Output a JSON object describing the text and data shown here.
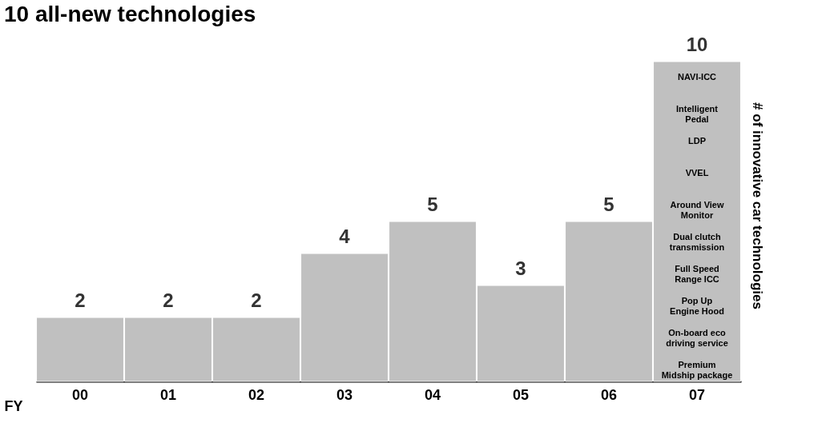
{
  "chart_data": {
    "type": "bar",
    "title": "10 all-new technologies",
    "xlabel": "FY",
    "ylabel": "# of innovative car technologies",
    "categories": [
      "00",
      "01",
      "02",
      "03",
      "04",
      "05",
      "06",
      "07"
    ],
    "values": [
      2,
      2,
      2,
      4,
      5,
      3,
      5,
      10
    ],
    "color": "#c0c0c0",
    "data_labels": true,
    "grid": false,
    "annotations": [
      "NAVI-ICC",
      "Intelligent\nPedal",
      "LDP",
      "VVEL",
      "Around View\nMonitor",
      "Dual clutch\ntransmission",
      "Full Speed\nRange ICC",
      "Pop Up\nEngine Hood",
      "On-board eco\ndriving service",
      "Premium\nMidship package"
    ]
  }
}
